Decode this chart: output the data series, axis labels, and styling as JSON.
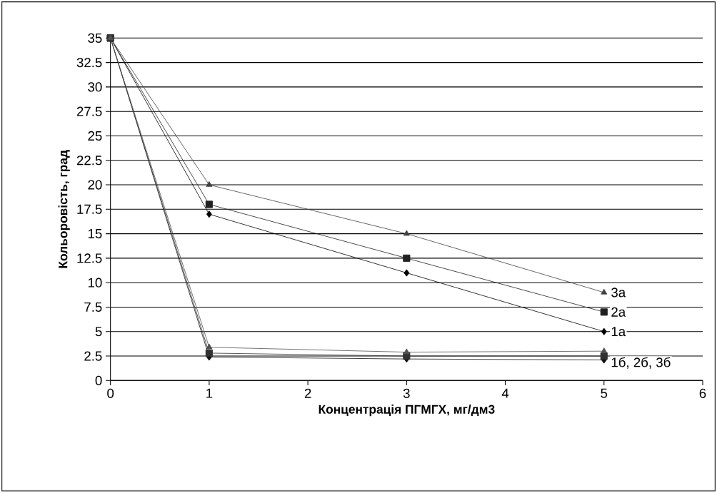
{
  "chart_data": {
    "type": "line",
    "xlabel": "Концентрація ПГМГХ, мг/дм3",
    "ylabel": "Кольоровість, град",
    "x": [
      0,
      1,
      3,
      5
    ],
    "series": [
      {
        "name": "1а",
        "color": "#000000",
        "marker": "diamond",
        "values": [
          35,
          17,
          11,
          5
        ]
      },
      {
        "name": "2а",
        "color": "#202020",
        "marker": "square",
        "values": [
          35,
          18,
          12.5,
          7
        ]
      },
      {
        "name": "3а",
        "color": "#404040",
        "marker": "triangle",
        "values": [
          35,
          20,
          15,
          9
        ]
      },
      {
        "color": "#101010",
        "marker": "diamond",
        "values": [
          35,
          2.4,
          2.2,
          2.1
        ]
      },
      {
        "color": "#303030",
        "marker": "square",
        "values": [
          35,
          2.8,
          2.5,
          2.5
        ]
      },
      {
        "color": "#505050",
        "marker": "triangle",
        "values": [
          35,
          3.4,
          2.9,
          3
        ]
      }
    ],
    "annotations": [
      {
        "text": "1б, 2б, 3б",
        "x": 5,
        "y": 2.5
      }
    ],
    "xlim": [
      0,
      6
    ],
    "xticks": [
      0,
      1,
      2,
      3,
      4,
      5,
      6
    ],
    "ylim": [
      0,
      35
    ],
    "yticks": [
      0,
      2.5,
      5,
      7.5,
      10,
      12.5,
      15,
      17.5,
      20,
      22.5,
      25,
      27.5,
      30,
      32.5,
      35
    ],
    "grid": "y",
    "line_style": "solid"
  }
}
